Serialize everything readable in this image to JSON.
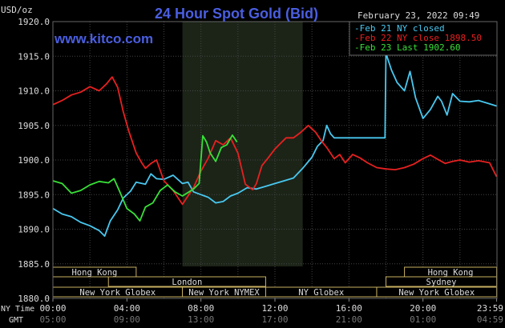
{
  "chart_data": {
    "type": "line",
    "title": "24 Hour Spot Gold (Bid)",
    "unit_label": "USD/oz",
    "website": "www.kitco.com",
    "date_time": "February 23, 2022 09:49",
    "ylim": [
      1880.0,
      1920.0
    ],
    "y_ticks": [
      "1920.0",
      "1915.0",
      "1910.0",
      "1905.0",
      "1900.0",
      "1895.0",
      "1890.0",
      "1885.0",
      "1880.0"
    ],
    "y_tick_values": [
      1920,
      1915,
      1910,
      1905,
      1900,
      1895,
      1890,
      1885,
      1880
    ],
    "x_ticks_ny": [
      "00:00",
      "04:00",
      "08:00",
      "12:00",
      "16:00",
      "20:00",
      "23:59"
    ],
    "x_ticks_gmt": [
      "05:00",
      "09:00",
      "13:00",
      "17:00",
      "21:00",
      "01:00",
      "04:59"
    ],
    "x_tick_hours": [
      0,
      4,
      8,
      12,
      16,
      20,
      23.98
    ],
    "row_label_ny": "NY Time",
    "row_label_gmt": "GMT",
    "shaded_session_hours": [
      7.0,
      13.5
    ],
    "sessions": [
      {
        "name": "Hong Kong",
        "start": 0,
        "end": 4.5,
        "row": 0
      },
      {
        "name": "Hong Kong",
        "start": 19,
        "end": 23.98,
        "row": 0
      },
      {
        "name": "London",
        "start": 3,
        "end": 11.5,
        "row": 1
      },
      {
        "name": "Sydney",
        "start": 18,
        "end": 23.98,
        "row": 1
      },
      {
        "name": "New York Globex",
        "start": 0,
        "end": 7,
        "row": 2
      },
      {
        "name": "New York NYMEX",
        "start": 7,
        "end": 11.5,
        "row": 2
      },
      {
        "name": "NY Globex",
        "start": 11.5,
        "end": 17.5,
        "row": 2
      },
      {
        "name": "New York Globex",
        "start": 17.5,
        "end": 23.98,
        "row": 2
      }
    ],
    "series": [
      {
        "name": "Feb 21 NY closed",
        "legend": "Feb 21 NY closed",
        "color": "#48c8f0",
        "points": [
          [
            0,
            1893.0
          ],
          [
            0.5,
            1892.2
          ],
          [
            1,
            1891.8
          ],
          [
            1.5,
            1891.0
          ],
          [
            2,
            1890.5
          ],
          [
            2.5,
            1889.8
          ],
          [
            2.8,
            1889.0
          ],
          [
            3.1,
            1891.2
          ],
          [
            3.5,
            1892.8
          ],
          [
            3.8,
            1894.5
          ],
          [
            4.2,
            1895.5
          ],
          [
            4.5,
            1896.8
          ],
          [
            5,
            1896.5
          ],
          [
            5.3,
            1898.0
          ],
          [
            5.6,
            1897.3
          ],
          [
            6,
            1897.2
          ],
          [
            6.5,
            1897.8
          ],
          [
            7,
            1896.6
          ],
          [
            7.3,
            1896.8
          ],
          [
            7.6,
            1895.4
          ],
          [
            8,
            1895.0
          ],
          [
            8.4,
            1894.6
          ],
          [
            8.8,
            1893.8
          ],
          [
            9.2,
            1894.0
          ],
          [
            9.6,
            1894.8
          ],
          [
            10,
            1895.2
          ],
          [
            10.5,
            1896.0
          ],
          [
            11,
            1895.8
          ],
          [
            11.5,
            1896.2
          ],
          [
            12,
            1896.6
          ],
          [
            12.5,
            1897.0
          ],
          [
            13,
            1897.4
          ],
          [
            13.5,
            1898.8
          ],
          [
            14,
            1900.4
          ],
          [
            14.3,
            1902.0
          ],
          [
            14.6,
            1902.8
          ],
          [
            14.8,
            1905.0
          ],
          [
            15,
            1903.8
          ],
          [
            15.2,
            1903.2
          ],
          [
            16,
            1903.2
          ],
          [
            17,
            1903.2
          ],
          [
            17.95,
            1903.2
          ],
          [
            18,
            1915.4
          ],
          [
            18.3,
            1913.0
          ],
          [
            18.6,
            1911.2
          ],
          [
            19,
            1910.0
          ],
          [
            19.3,
            1912.8
          ],
          [
            19.6,
            1909.0
          ],
          [
            20,
            1906.0
          ],
          [
            20.4,
            1907.3
          ],
          [
            20.8,
            1909.2
          ],
          [
            21,
            1908.5
          ],
          [
            21.3,
            1906.5
          ],
          [
            21.6,
            1909.6
          ],
          [
            22,
            1908.5
          ],
          [
            22.5,
            1908.4
          ],
          [
            23,
            1908.6
          ],
          [
            23.5,
            1908.2
          ],
          [
            23.98,
            1907.8
          ]
        ]
      },
      {
        "name": "Feb 22 NY close 1898.50",
        "legend": "Feb 22 NY close 1898.50",
        "color": "#e82020",
        "points": [
          [
            0,
            1908.0
          ],
          [
            0.5,
            1908.6
          ],
          [
            1,
            1909.4
          ],
          [
            1.5,
            1909.8
          ],
          [
            2,
            1910.6
          ],
          [
            2.5,
            1910.0
          ],
          [
            2.9,
            1911.0
          ],
          [
            3.2,
            1912.0
          ],
          [
            3.5,
            1910.5
          ],
          [
            3.8,
            1907.0
          ],
          [
            4.1,
            1904.2
          ],
          [
            4.5,
            1901.0
          ],
          [
            4.8,
            1899.6
          ],
          [
            5,
            1898.8
          ],
          [
            5.3,
            1899.5
          ],
          [
            5.6,
            1900.0
          ],
          [
            6,
            1897.0
          ],
          [
            6.5,
            1895.6
          ],
          [
            7,
            1893.6
          ],
          [
            7.3,
            1894.8
          ],
          [
            7.6,
            1896.0
          ],
          [
            8,
            1898.4
          ],
          [
            8.4,
            1900.3
          ],
          [
            8.8,
            1902.8
          ],
          [
            9.2,
            1902.2
          ],
          [
            9.6,
            1903.2
          ],
          [
            10,
            1901.0
          ],
          [
            10.4,
            1896.5
          ],
          [
            10.8,
            1895.7
          ],
          [
            11,
            1896.6
          ],
          [
            11.3,
            1899.2
          ],
          [
            11.6,
            1900.2
          ],
          [
            12,
            1901.6
          ],
          [
            12.3,
            1902.4
          ],
          [
            12.6,
            1903.2
          ],
          [
            13,
            1903.2
          ],
          [
            13.4,
            1904.0
          ],
          [
            13.8,
            1905.0
          ],
          [
            14.2,
            1904.0
          ],
          [
            14.5,
            1902.8
          ],
          [
            14.8,
            1901.8
          ],
          [
            15.2,
            1900.2
          ],
          [
            15.5,
            1900.8
          ],
          [
            15.8,
            1899.6
          ],
          [
            16.2,
            1900.8
          ],
          [
            16.6,
            1900.3
          ],
          [
            17,
            1899.6
          ],
          [
            17.5,
            1898.9
          ],
          [
            18,
            1898.7
          ],
          [
            18.5,
            1898.6
          ],
          [
            19,
            1898.9
          ],
          [
            19.5,
            1899.4
          ],
          [
            20,
            1900.2
          ],
          [
            20.4,
            1900.7
          ],
          [
            20.8,
            1900.1
          ],
          [
            21.2,
            1899.5
          ],
          [
            21.6,
            1899.8
          ],
          [
            22,
            1900.0
          ],
          [
            22.5,
            1899.7
          ],
          [
            23,
            1899.9
          ],
          [
            23.6,
            1899.6
          ],
          [
            23.98,
            1897.6
          ]
        ]
      },
      {
        "name": "Feb 23 Last 1902.60",
        "legend": "Feb 23 Last 1902.60",
        "color": "#38e038",
        "points": [
          [
            0,
            1897.0
          ],
          [
            0.5,
            1896.6
          ],
          [
            1,
            1895.2
          ],
          [
            1.5,
            1895.6
          ],
          [
            2,
            1896.4
          ],
          [
            2.5,
            1896.9
          ],
          [
            3,
            1896.7
          ],
          [
            3.3,
            1897.3
          ],
          [
            3.6,
            1895.5
          ],
          [
            4,
            1893.0
          ],
          [
            4.4,
            1892.2
          ],
          [
            4.7,
            1891.2
          ],
          [
            5,
            1893.2
          ],
          [
            5.4,
            1893.8
          ],
          [
            5.8,
            1895.6
          ],
          [
            6.2,
            1896.4
          ],
          [
            6.6,
            1895.4
          ],
          [
            7,
            1894.8
          ],
          [
            7.3,
            1895.3
          ],
          [
            7.6,
            1895.8
          ],
          [
            7.9,
            1896.6
          ],
          [
            8.1,
            1903.5
          ],
          [
            8.3,
            1902.6
          ],
          [
            8.5,
            1901.0
          ],
          [
            8.8,
            1899.8
          ],
          [
            9.1,
            1901.8
          ],
          [
            9.4,
            1902.2
          ],
          [
            9.7,
            1903.6
          ],
          [
            9.95,
            1902.6
          ]
        ]
      }
    ]
  }
}
